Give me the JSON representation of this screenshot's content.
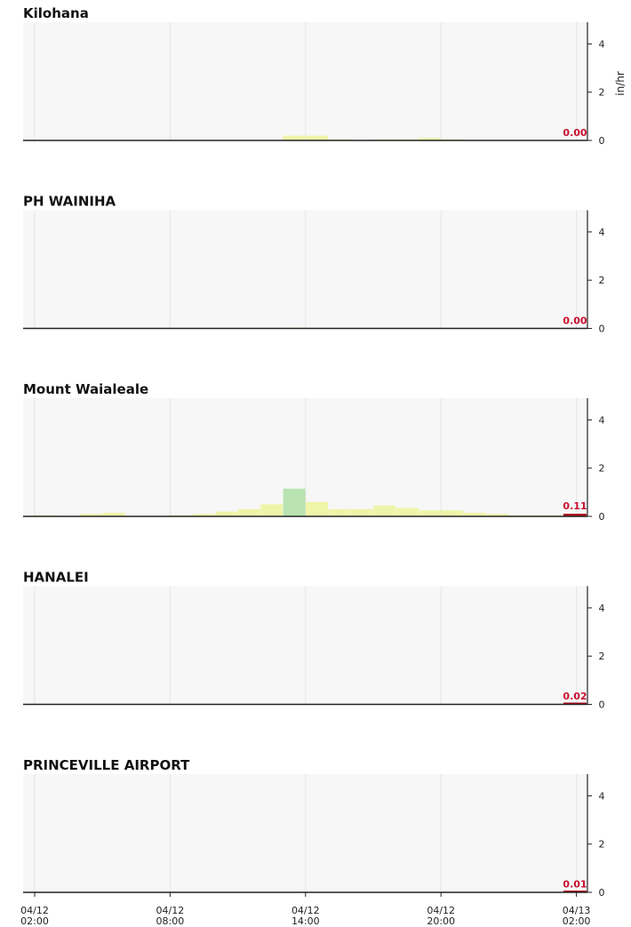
{
  "chart_data": {
    "type": "bar",
    "y_unit": "in/hr",
    "ylim": [
      0,
      4.9
    ],
    "y_ticks": [
      0,
      2,
      4
    ],
    "x_ticks": [
      {
        "date": "04/12",
        "time": "02:00",
        "hour": 0
      },
      {
        "date": "04/12",
        "time": "08:00",
        "hour": 6
      },
      {
        "date": "04/12",
        "time": "14:00",
        "hour": 12
      },
      {
        "date": "04/12",
        "time": "20:00",
        "hour": 18
      },
      {
        "date": "04/13",
        "time": "02:00",
        "hour": 24
      }
    ],
    "colors": {
      "panel_bg": "#f7f7f7",
      "grid": "#e4e4e4",
      "axis": "#222222",
      "light_rain": "#eef5a8",
      "moderate_rain": "#b9e3b0",
      "latest": "#c8102e",
      "latest_bar": "#b10e1e"
    },
    "series": [
      {
        "name": "Kilohana",
        "latest": 0.0,
        "latest_label": "0.00",
        "bars": [
          {
            "hour": 11.5,
            "value": 0.2
          },
          {
            "hour": 12.5,
            "value": 0.2
          },
          {
            "hour": 13.5,
            "value": 0.05
          },
          {
            "hour": 15.5,
            "value": 0.05
          },
          {
            "hour": 16.5,
            "value": 0.05
          },
          {
            "hour": 17.5,
            "value": 0.1
          },
          {
            "hour": 18.5,
            "value": 0.05
          }
        ]
      },
      {
        "name": "PH WAINIHA",
        "latest": 0.0,
        "latest_label": "0.00",
        "bars": [
          {
            "hour": 11.5,
            "value": 0.03
          },
          {
            "hour": 18.5,
            "value": 0.02
          }
        ]
      },
      {
        "name": "Mount Waialeale",
        "latest": 0.11,
        "latest_label": "0.11",
        "bars": [
          {
            "hour": 0.5,
            "value": 0.05
          },
          {
            "hour": 2.5,
            "value": 0.1
          },
          {
            "hour": 3.5,
            "value": 0.15
          },
          {
            "hour": 6.5,
            "value": 0.05
          },
          {
            "hour": 7.5,
            "value": 0.1
          },
          {
            "hour": 8.5,
            "value": 0.2
          },
          {
            "hour": 9.5,
            "value": 0.3
          },
          {
            "hour": 10.5,
            "value": 0.5
          },
          {
            "hour": 11.5,
            "value": 1.15
          },
          {
            "hour": 12.5,
            "value": 0.6
          },
          {
            "hour": 13.5,
            "value": 0.3
          },
          {
            "hour": 14.5,
            "value": 0.3
          },
          {
            "hour": 15.5,
            "value": 0.45
          },
          {
            "hour": 16.5,
            "value": 0.35
          },
          {
            "hour": 17.5,
            "value": 0.25
          },
          {
            "hour": 18.5,
            "value": 0.25
          },
          {
            "hour": 19.5,
            "value": 0.15
          },
          {
            "hour": 20.5,
            "value": 0.1
          },
          {
            "hour": 21.5,
            "value": 0.05
          },
          {
            "hour": 22.5,
            "value": 0.05
          },
          {
            "hour": 23.5,
            "value": 0.05
          }
        ]
      },
      {
        "name": "HANALEI",
        "latest": 0.02,
        "latest_label": "0.02",
        "bars": [
          {
            "hour": 10.5,
            "value": 0.02
          }
        ]
      },
      {
        "name": "PRINCEVILLE AIRPORT",
        "latest": 0.01,
        "latest_label": "0.01",
        "bars": []
      }
    ]
  }
}
